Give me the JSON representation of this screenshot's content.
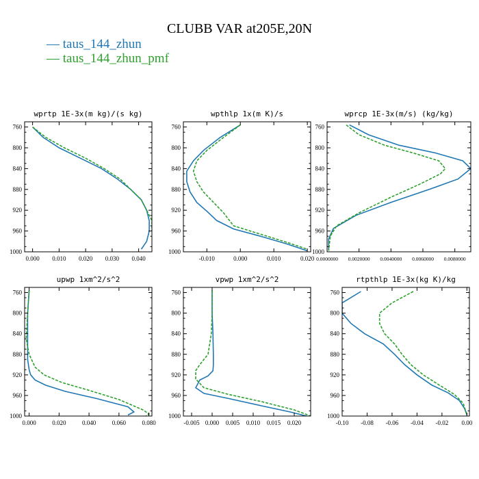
{
  "figure_title": "CLUBB VAR at205E,20N",
  "legend": [
    {
      "label": "taus_144_zhun",
      "color": "#1f77b4",
      "dash": "solid"
    },
    {
      "label": "taus_144_zhun_pmf",
      "color": "#2ca02c",
      "dash": "dashed"
    }
  ],
  "chart_data": [
    {
      "type": "line",
      "title": "wprtp  1E-3x(m kg)/(s kg)",
      "xlim": [
        -0.003,
        0.045
      ],
      "ylim": [
        1000,
        750
      ],
      "xticks": [
        0.0,
        0.01,
        0.02,
        0.03,
        0.04
      ],
      "xticklabels": [
        "0.000",
        "0.010",
        "0.020",
        "0.030",
        "0.040"
      ],
      "yticks": [
        760,
        800,
        840,
        880,
        920,
        960,
        1000
      ],
      "series": [
        {
          "name": "taus_144_zhun",
          "x": [
            0.0,
            0.004,
            0.01,
            0.018,
            0.026,
            0.032,
            0.037,
            0.041,
            0.043,
            0.044,
            0.044,
            0.043,
            0.041
          ],
          "y": [
            760,
            780,
            800,
            820,
            840,
            860,
            880,
            900,
            920,
            940,
            960,
            980,
            995
          ]
        },
        {
          "name": "taus_144_zhun_pmf",
          "x": [
            0.0,
            0.005,
            0.012,
            0.02,
            0.027,
            0.033,
            0.037,
            0.041,
            0.043,
            0.045,
            0.045
          ],
          "y": [
            760,
            780,
            800,
            820,
            840,
            860,
            880,
            900,
            920,
            940,
            960
          ]
        }
      ]
    },
    {
      "type": "line",
      "title": "wpthlp  1x(m K)/s",
      "xlim": [
        -0.017,
        0.021
      ],
      "ylim": [
        1000,
        750
      ],
      "xticks": [
        -0.01,
        0.0,
        0.01,
        0.02
      ],
      "xticklabels": [
        "-0.010",
        "0.000",
        "0.010",
        "0.020"
      ],
      "yticks": [
        760,
        800,
        840,
        880,
        920,
        960,
        1000
      ],
      "series": [
        {
          "name": "taus_144_zhun",
          "x": [
            0.0,
            -0.006,
            -0.011,
            -0.014,
            -0.016,
            -0.016,
            -0.015,
            -0.013,
            -0.01,
            -0.007,
            -0.002,
            0.006,
            0.014,
            0.02
          ],
          "y": [
            756,
            780,
            805,
            825,
            845,
            865,
            885,
            905,
            922,
            940,
            956,
            970,
            985,
            998
          ]
        },
        {
          "name": "taus_144_zhun_pmf",
          "x": [
            0.0,
            -0.005,
            -0.01,
            -0.013,
            -0.014,
            -0.013,
            -0.011,
            -0.008,
            -0.005,
            -0.002,
            0.006,
            0.014,
            0.02
          ],
          "y": [
            756,
            780,
            805,
            825,
            845,
            865,
            885,
            905,
            925,
            950,
            966,
            982,
            995
          ]
        }
      ]
    },
    {
      "type": "line",
      "title": "wprcp  1E-3x(m/s) (kg/kg)",
      "xlim": [
        0.0,
        0.009
      ],
      "ylim": [
        1000,
        750
      ],
      "xticks": [
        0.0,
        0.002,
        0.004,
        0.006,
        0.008
      ],
      "xticklabels": [
        "0.0000000",
        "0.0020000",
        "0.0040000",
        "0.0060000",
        "0.0080000"
      ],
      "yticks": [
        760,
        800,
        840,
        880,
        920,
        960,
        1000
      ],
      "series": [
        {
          "name": "taus_144_zhun",
          "x": [
            0.0014,
            0.0026,
            0.0045,
            0.0068,
            0.0085,
            0.009,
            0.0082,
            0.0064,
            0.004,
            0.0018,
            0.0004,
            0.0001,
            0.0001
          ],
          "y": [
            756,
            775,
            795,
            810,
            825,
            840,
            860,
            880,
            905,
            930,
            955,
            975,
            998
          ]
        },
        {
          "name": "taus_144_zhun_pmf",
          "x": [
            0.0012,
            0.002,
            0.0036,
            0.0054,
            0.007,
            0.0074,
            0.0071,
            0.0058,
            0.004,
            0.002,
            0.0006,
            0.0002,
            0.0001
          ],
          "y": [
            756,
            775,
            795,
            810,
            825,
            840,
            850,
            870,
            895,
            925,
            950,
            970,
            998
          ]
        }
      ]
    },
    {
      "type": "line",
      "title": "upwp  1xm^2/s^2",
      "xlim": [
        -0.003,
        0.082
      ],
      "ylim": [
        1000,
        750
      ],
      "xticks": [
        0.0,
        0.02,
        0.04,
        0.06,
        0.08
      ],
      "xticklabels": [
        "0.000",
        "0.020",
        "0.040",
        "0.060",
        "0.080"
      ],
      "yticks": [
        760,
        800,
        840,
        880,
        920,
        960,
        1000
      ],
      "series": [
        {
          "name": "taus_144_zhun",
          "x": [
            0.0,
            -0.001,
            -0.001,
            -0.001,
            0.0,
            0.001,
            0.004,
            0.011,
            0.024,
            0.045,
            0.066,
            0.07,
            0.066
          ],
          "y": [
            756,
            800,
            850,
            890,
            910,
            920,
            930,
            940,
            952,
            966,
            982,
            992,
            998
          ]
        },
        {
          "name": "taus_144_zhun_pmf",
          "x": [
            0.0,
            -0.001,
            -0.002,
            0.0,
            0.004,
            0.01,
            0.022,
            0.04,
            0.06,
            0.076,
            0.08,
            0.078
          ],
          "y": [
            756,
            800,
            850,
            880,
            905,
            920,
            935,
            950,
            968,
            988,
            996,
            1000
          ]
        }
      ]
    },
    {
      "type": "line",
      "title": "vpwp  1xm^2/s^2",
      "xlim": [
        -0.007,
        0.024
      ],
      "ylim": [
        1000,
        750
      ],
      "xticks": [
        -0.005,
        0.0,
        0.005,
        0.01,
        0.015,
        0.02
      ],
      "xticklabels": [
        "-0.005",
        "0.000",
        "0.005",
        "0.010",
        "0.015",
        "0.020"
      ],
      "yticks": [
        760,
        800,
        840,
        880,
        920,
        960,
        1000
      ],
      "series": [
        {
          "name": "taus_144_zhun",
          "x": [
            0.0,
            0.0,
            0.0002,
            0.0003,
            0.0003,
            0.0002,
            -0.001,
            -0.003,
            -0.004,
            -0.002,
            0.004,
            0.012,
            0.019,
            0.023
          ],
          "y": [
            756,
            800,
            840,
            880,
            900,
            912,
            922,
            930,
            945,
            956,
            966,
            980,
            992,
            1000
          ]
        },
        {
          "name": "taus_144_zhun_pmf",
          "x": [
            0.0,
            0.0,
            -0.0002,
            -0.001,
            -0.003,
            -0.004,
            -0.004,
            -0.002,
            0.004,
            0.012,
            0.02,
            0.024
          ],
          "y": [
            756,
            800,
            840,
            880,
            900,
            912,
            928,
            945,
            958,
            972,
            988,
            1000
          ]
        }
      ]
    },
    {
      "type": "line",
      "title": "rtpthlp  1E-3x(kg K)/kg",
      "xlim": [
        -0.1,
        0.002
      ],
      "ylim": [
        1000,
        750
      ],
      "xticks": [
        -0.1,
        -0.08,
        -0.06,
        -0.04,
        -0.02,
        0.0
      ],
      "xticklabels": [
        "-0.10",
        "-0.08",
        "-0.06",
        "-0.04",
        "-0.02",
        "0.00"
      ],
      "yticks": [
        760,
        800,
        840,
        880,
        920,
        960,
        1000
      ],
      "series": [
        {
          "name": "taus_144_zhun",
          "x": [
            -0.085,
            -0.1,
            -0.1,
            -0.093,
            -0.082,
            -0.067,
            -0.058,
            -0.05,
            -0.04,
            -0.028,
            -0.015,
            -0.006,
            -0.002,
            0.0
          ],
          "y": [
            758,
            780,
            800,
            820,
            840,
            860,
            880,
            900,
            920,
            940,
            955,
            970,
            985,
            998
          ]
        },
        {
          "name": "taus_144_zhun_pmf",
          "x": [
            -0.043,
            -0.06,
            -0.07,
            -0.07,
            -0.066,
            -0.058,
            -0.052,
            -0.045,
            -0.035,
            -0.022,
            -0.01,
            -0.003,
            0.0
          ],
          "y": [
            758,
            780,
            800,
            820,
            840,
            860,
            880,
            900,
            920,
            940,
            958,
            975,
            998
          ]
        }
      ]
    }
  ]
}
